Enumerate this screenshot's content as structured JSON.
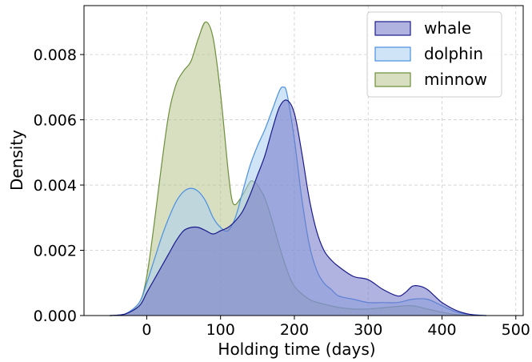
{
  "chart_data": {
    "type": "area",
    "xlabel": "Holding time (days)",
    "ylabel": "Density",
    "xlim": [
      -85,
      510
    ],
    "ylim": [
      0,
      0.0095
    ],
    "xticks": [
      0,
      100,
      200,
      300,
      400,
      500
    ],
    "xtick_labels": [
      "0",
      "100",
      "200",
      "300",
      "400",
      "500"
    ],
    "yticks": [
      0,
      0.002,
      0.004,
      0.006,
      0.008
    ],
    "ytick_labels": [
      "0.000",
      "0.002",
      "0.004",
      "0.006",
      "0.008"
    ],
    "grid": true,
    "legend_position": "top-right",
    "series": [
      {
        "name": "minnow",
        "fill": "#b7c48c",
        "stroke": "#6b8f3a",
        "x": [
          -50,
          -30,
          -10,
          0,
          10,
          20,
          30,
          40,
          50,
          60,
          70,
          80,
          90,
          100,
          110,
          115,
          120,
          130,
          140,
          145,
          150,
          160,
          170,
          180,
          190,
          200,
          220,
          240,
          260,
          280,
          300,
          320,
          340,
          360,
          380,
          400,
          420,
          440
        ],
        "y": [
          0,
          4e-05,
          0.0004,
          0.0012,
          0.0028,
          0.0046,
          0.0062,
          0.0071,
          0.0075,
          0.0078,
          0.0085,
          0.009,
          0.0085,
          0.0068,
          0.0045,
          0.0036,
          0.0034,
          0.0037,
          0.0041,
          0.0041,
          0.004,
          0.0036,
          0.0029,
          0.0021,
          0.0014,
          0.0009,
          0.0005,
          0.00035,
          0.00025,
          0.0002,
          0.0002,
          0.00024,
          0.00028,
          0.0003,
          0.0002,
          0.0001,
          3e-05,
          0
        ]
      },
      {
        "name": "dolphin",
        "fill": "#a9cdf2",
        "stroke": "#4a90e2",
        "x": [
          -50,
          -30,
          -10,
          0,
          10,
          20,
          30,
          40,
          50,
          60,
          70,
          80,
          90,
          100,
          110,
          120,
          130,
          140,
          150,
          160,
          170,
          180,
          185,
          190,
          200,
          210,
          220,
          230,
          240,
          250,
          260,
          280,
          300,
          320,
          340,
          360,
          380,
          400,
          420,
          440,
          460
        ],
        "y": [
          0,
          4e-05,
          0.0004,
          0.001,
          0.0017,
          0.0024,
          0.003,
          0.0035,
          0.0038,
          0.0039,
          0.0038,
          0.0035,
          0.003,
          0.0027,
          0.0026,
          0.003,
          0.0038,
          0.0046,
          0.0052,
          0.0057,
          0.0063,
          0.0069,
          0.007,
          0.0068,
          0.0054,
          0.0036,
          0.0022,
          0.0014,
          0.001,
          0.0008,
          0.0006,
          0.0005,
          0.0004,
          0.0004,
          0.0004,
          0.0005,
          0.0005,
          0.0003,
          0.0001,
          3e-05,
          0
        ]
      },
      {
        "name": "whale",
        "fill": "#7074c6",
        "stroke": "#1a1a8c",
        "x": [
          -50,
          -30,
          -10,
          0,
          10,
          20,
          30,
          40,
          50,
          60,
          70,
          80,
          90,
          100,
          110,
          120,
          130,
          140,
          150,
          160,
          170,
          180,
          190,
          200,
          210,
          220,
          230,
          240,
          250,
          260,
          280,
          300,
          320,
          340,
          350,
          360,
          370,
          380,
          390,
          400,
          420,
          440,
          460
        ],
        "y": [
          0,
          4e-05,
          0.0003,
          0.0007,
          0.0011,
          0.0015,
          0.0019,
          0.0023,
          0.0026,
          0.0027,
          0.0027,
          0.0026,
          0.0025,
          0.0026,
          0.0027,
          0.0029,
          0.0032,
          0.0037,
          0.0043,
          0.0049,
          0.0057,
          0.0064,
          0.0066,
          0.0062,
          0.005,
          0.0036,
          0.0026,
          0.002,
          0.0017,
          0.0015,
          0.0012,
          0.0011,
          0.0008,
          0.0006,
          0.0007,
          0.0009,
          0.0009,
          0.0008,
          0.0006,
          0.0004,
          0.00015,
          3e-05,
          0
        ]
      }
    ],
    "legend_order": [
      "whale",
      "dolphin",
      "minnow"
    ]
  }
}
